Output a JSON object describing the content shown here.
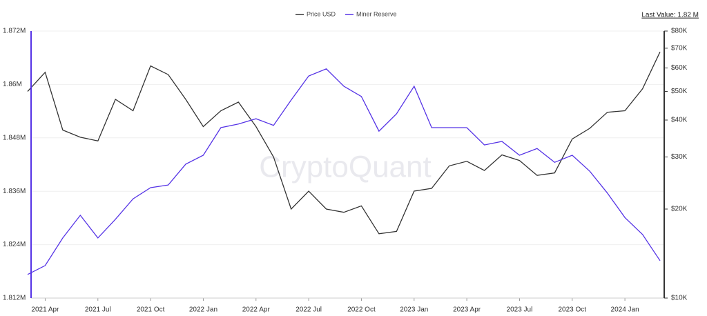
{
  "chart_data": {
    "type": "line",
    "watermark": "CryptoQuant",
    "last_value": "Last Value: 1.82 M",
    "categories": [
      null,
      "2021 Apr",
      null,
      null,
      "2021 Jul",
      null,
      null,
      "2021 Oct",
      null,
      null,
      "2022 Jan",
      null,
      null,
      "2022 Apr",
      null,
      null,
      "2022 Jul",
      null,
      null,
      "2022 Oct",
      null,
      null,
      "2023 Jan",
      null,
      null,
      "2023 Apr",
      null,
      null,
      "2023 Jul",
      null,
      null,
      "2023 Oct",
      null,
      null,
      "2024 Jan",
      null,
      null
    ],
    "series": [
      {
        "name": "Price USD",
        "color": "#333333",
        "axis": "y2",
        "values": [
          50000,
          58000,
          37000,
          35000,
          34000,
          47000,
          43000,
          61000,
          57000,
          47000,
          38000,
          43000,
          46000,
          38000,
          30000,
          20000,
          23000,
          20000,
          19500,
          20500,
          16500,
          16800,
          23000,
          23500,
          28000,
          29000,
          27000,
          30500,
          29200,
          26000,
          26500,
          34500,
          37500,
          42500,
          43000,
          51000,
          68000
        ]
      },
      {
        "name": "Miner Reserve",
        "color": "#5533e6",
        "values": [
          1817300,
          1819300,
          1825500,
          1830600,
          1825500,
          1829700,
          1834300,
          1836800,
          1837400,
          1842100,
          1844100,
          1850300,
          1851100,
          1852300,
          1850800,
          1856500,
          1861900,
          1863500,
          1859600,
          1857300,
          1849500,
          1853400,
          1859600,
          1850300,
          1850300,
          1850300,
          1846400,
          1847200,
          1844100,
          1845600,
          1842500,
          1844100,
          1840500,
          1835600,
          1830100,
          1826300,
          1820400
        ]
      }
    ],
    "ylim": [
      1812000,
      1872000
    ],
    "yticks": [
      {
        "value": 1812000,
        "label": "1.812M"
      },
      {
        "value": 1824000,
        "label": "1.824M"
      },
      {
        "value": 1836000,
        "label": "1.836M"
      },
      {
        "value": 1848000,
        "label": "1.848M"
      },
      {
        "value": 1860000,
        "label": "1.86M"
      },
      {
        "value": 1872000,
        "label": "1.872M"
      }
    ],
    "y2lim": [
      10000,
      80000
    ],
    "y2scale": "log",
    "y2ticks": [
      {
        "value": 10000,
        "label": "$10K"
      },
      {
        "value": 20000,
        "label": "$20K"
      },
      {
        "value": 30000,
        "label": "$30K"
      },
      {
        "value": 40000,
        "label": "$40K"
      },
      {
        "value": 50000,
        "label": "$50K"
      },
      {
        "value": 60000,
        "label": "$60K"
      },
      {
        "value": 70000,
        "label": "$70K"
      },
      {
        "value": 80000,
        "label": "$80K"
      }
    ],
    "grid": true
  }
}
